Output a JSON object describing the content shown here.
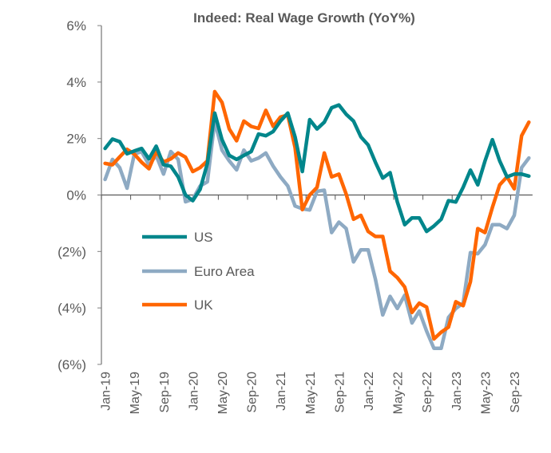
{
  "chart_data": {
    "type": "line",
    "title": "Indeed: Real Wage Growth (YoY%)",
    "xlabel": "",
    "ylabel": "",
    "ylim": [
      -6,
      6
    ],
    "yticks": [
      6,
      4,
      2,
      0,
      -2,
      -4,
      -6
    ],
    "ytick_labels": [
      "6%",
      "4%",
      "2%",
      "0%",
      "(2%)",
      "(4%)",
      "(6%)"
    ],
    "x_start": "Jan-19",
    "x_end": "Nov-23",
    "frequency": "monthly",
    "xtick_labels": [
      "Jan-19",
      "May-19",
      "Sep-19",
      "Jan-20",
      "May-20",
      "Sep-20",
      "Jan-21",
      "May-21",
      "Sep-21",
      "Jan-22",
      "May-22",
      "Sep-22",
      "Jan-23",
      "May-23",
      "Sep-23"
    ],
    "grid": false,
    "legend_position": "lower-left",
    "series": [
      {
        "name": "US",
        "color": "#00868B",
        "values": [
          1.65,
          1.98,
          1.89,
          1.46,
          1.56,
          1.65,
          1.28,
          1.73,
          1.07,
          1.02,
          0.64,
          0.0,
          -0.2,
          0.2,
          1.12,
          2.9,
          1.96,
          1.4,
          1.26,
          1.4,
          1.54,
          2.16,
          2.1,
          2.25,
          2.62,
          2.9,
          2.06,
          0.83,
          2.67,
          2.34,
          2.58,
          3.09,
          3.19,
          2.86,
          2.62,
          2.06,
          1.77,
          1.16,
          0.6,
          0.79,
          -0.25,
          -1.05,
          -0.81,
          -0.81,
          -1.29,
          -1.1,
          -0.86,
          -0.2,
          -0.25,
          0.27,
          0.88,
          0.36,
          1.21,
          1.96,
          1.21,
          0.64,
          0.74,
          0.74,
          0.67
        ]
      },
      {
        "name": "Euro Area",
        "color": "#8EAAC3",
        "values": [
          0.55,
          1.26,
          0.97,
          0.24,
          1.45,
          1.54,
          1.07,
          1.4,
          0.74,
          1.54,
          1.26,
          -0.24,
          -0.15,
          0.32,
          0.47,
          2.62,
          1.59,
          1.21,
          0.89,
          1.59,
          1.21,
          1.31,
          1.49,
          1.02,
          0.64,
          0.32,
          -0.39,
          -0.49,
          -0.53,
          0.13,
          0.17,
          -1.33,
          -0.96,
          -1.19,
          -2.37,
          -1.94,
          -1.94,
          -2.98,
          -4.25,
          -3.59,
          -4.02,
          -3.55,
          -4.53,
          -4.11,
          -4.82,
          -5.43,
          -5.43,
          -4.34,
          -4.02,
          -3.83,
          -2.04,
          -2.08,
          -1.76,
          -1.05,
          -1.05,
          -1.19,
          -0.72,
          0.97,
          1.31
        ]
      },
      {
        "name": "UK",
        "color": "#FF6600",
        "values": [
          1.12,
          1.07,
          1.35,
          1.62,
          1.45,
          1.16,
          0.93,
          1.54,
          1.17,
          1.28,
          1.49,
          1.34,
          0.83,
          0.97,
          1.21,
          3.66,
          3.28,
          2.34,
          1.92,
          2.62,
          2.43,
          2.36,
          3.0,
          2.43,
          2.76,
          2.83,
          1.68,
          -0.52,
          0.0,
          0.27,
          1.49,
          0.64,
          0.74,
          0.03,
          -0.86,
          -0.72,
          -1.29,
          -1.47,
          -1.47,
          -2.7,
          -2.93,
          -3.26,
          -4.16,
          -3.83,
          -3.97,
          -5.1,
          -4.86,
          -4.68,
          -3.78,
          -3.92,
          -3.07,
          -1.19,
          -1.33,
          -0.44,
          0.36,
          0.64,
          0.22,
          2.1,
          2.58
        ]
      }
    ]
  }
}
